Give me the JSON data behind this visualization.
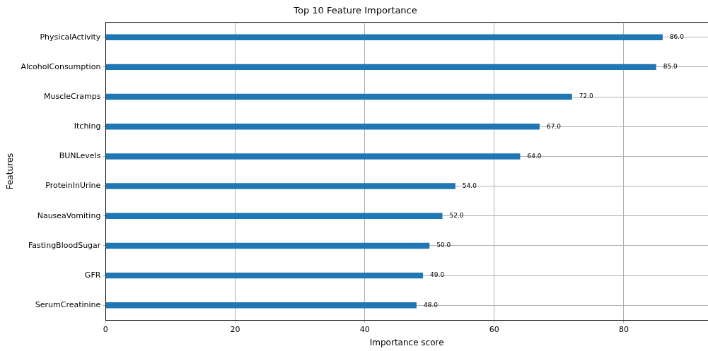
{
  "chart_data": {
    "type": "bar",
    "orientation": "horizontal",
    "title": "Top 10 Feature Importance",
    "xlabel": "Importance score",
    "ylabel": "Features",
    "categories": [
      "PhysicalActivity",
      "AlcoholConsumption",
      "MuscleCramps",
      "Itching",
      "BUNLevels",
      "ProteinInUrine",
      "NauseaVomiting",
      "FastingBloodSugar",
      "GFR",
      "SerumCreatinine"
    ],
    "values": [
      86,
      85,
      72,
      67,
      64,
      54,
      52,
      50,
      49,
      48
    ],
    "value_labels": [
      "86.0",
      "85.0",
      "72.0",
      "67.0",
      "64.0",
      "54.0",
      "52.0",
      "50.0",
      "49.0",
      "48.0"
    ],
    "color": "#1f77b4",
    "xlim": [
      0,
      93
    ],
    "xticks": [
      0,
      20,
      40,
      60,
      80
    ],
    "grid": true,
    "legend": false
  }
}
